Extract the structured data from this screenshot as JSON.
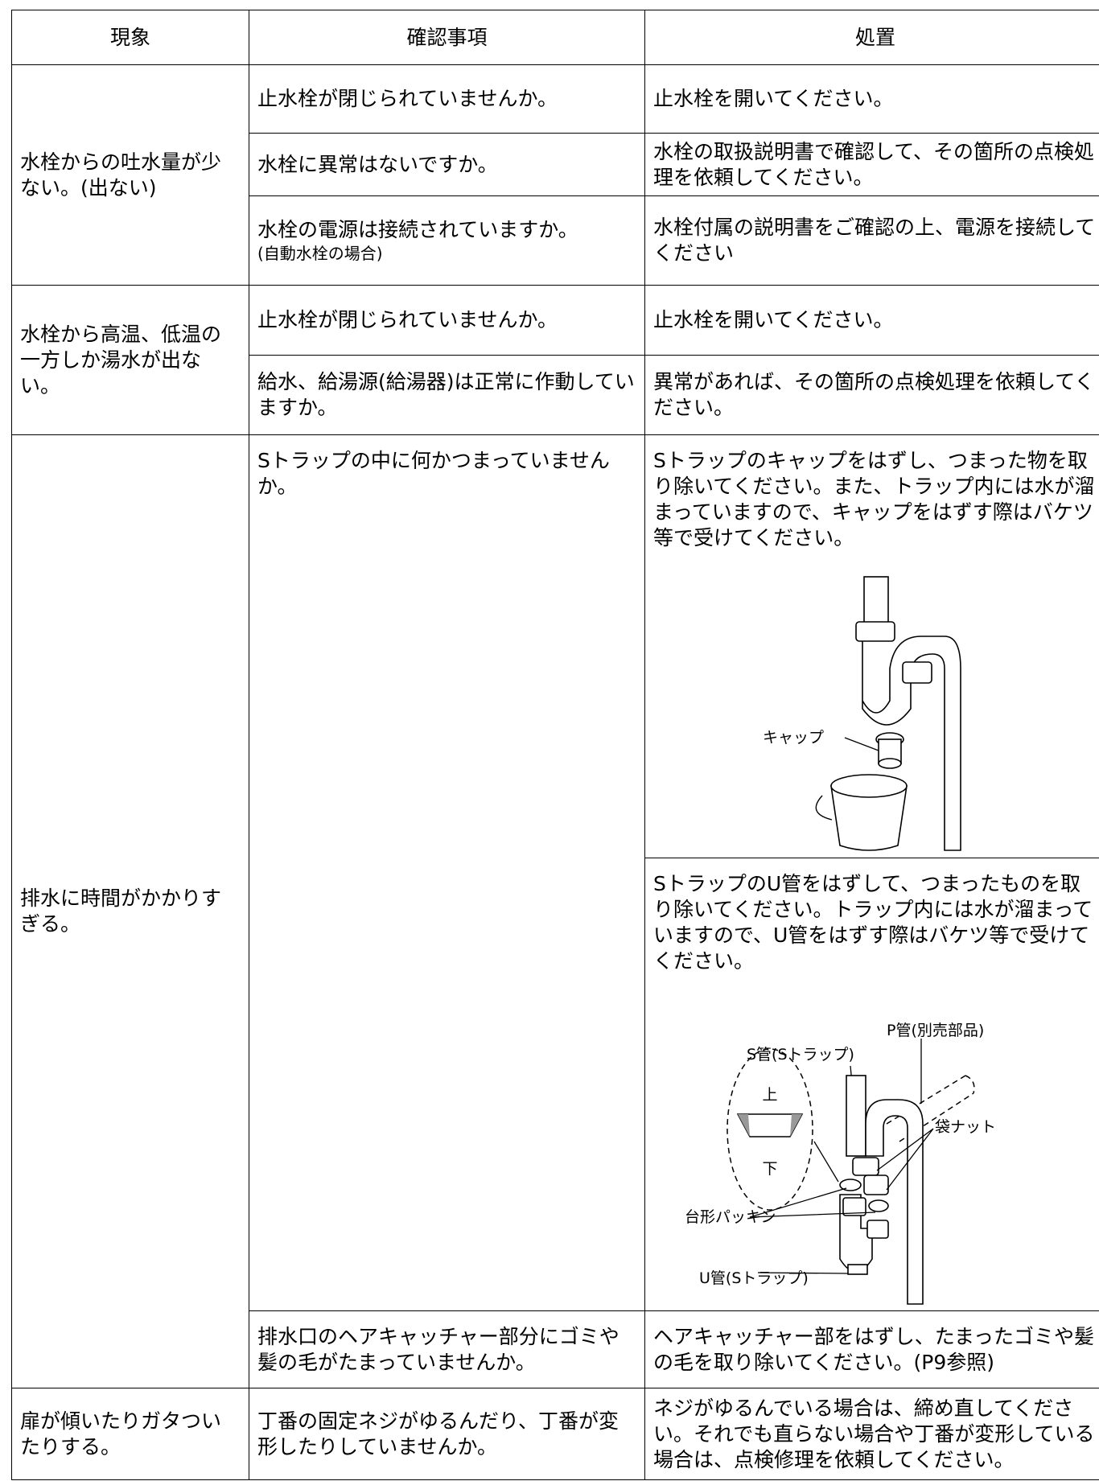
{
  "table": {
    "header": [
      "現象",
      "確認事項",
      "処置"
    ],
    "groups": [
      {
        "symptom": "水栓からの吐水量が少ない。(出ない)",
        "checks": [
          {
            "check": "止水栓が閉じられていませんか。",
            "action": "止水栓を開いてください。"
          },
          {
            "check": "水栓に異常はないですか。",
            "action": "水栓の取扱説明書で確認して、その箇所の点検処理を依頼してください。"
          },
          {
            "check": "水栓の電源は接続されていますか。",
            "note": "(自動水栓の場合)",
            "action": "水栓付属の説明書をご確認の上、電源を接続してください"
          }
        ]
      },
      {
        "symptom": "水栓から高温、低温の一方しか湯水が出ない。",
        "checks": [
          {
            "check": "止水栓が閉じられていませんか。",
            "action": "止水栓を開いてください。"
          },
          {
            "check": "給水、給湯源(給湯器)は正常に作動していますか。",
            "action": "異常があれば、その箇所の点検処理を依頼してください。"
          }
        ]
      },
      {
        "symptom": "排水に時間がかかりすぎる。",
        "checks": [
          {
            "check": "Sトラップの中に何かつまっていませんか。",
            "actions": [
              {
                "text": "Sトラップのキャップをはずし、つまった物を取り除いてください。また、トラップ内には水が溜まっていますので、キャップをはずす際はバケツ等で受けてください。",
                "figure": {
                  "cap": "キャップ"
                }
              },
              {
                "text": "SトラップのU管をはずして、つまったものを取り除いてください。トラップ内には水が溜まっていますので、U管をはずす際はバケツ等で受けてください。",
                "figure": {
                  "p_pipe": "P管(別売部品)",
                  "s_pipe": "S管(Sトラップ)",
                  "top": "上",
                  "bottom": "下",
                  "nut": "袋ナット",
                  "packing": "台形パッキン",
                  "u_pipe": "U管(Sトラップ)"
                }
              }
            ]
          },
          {
            "check": "排水口のヘアキャッチャー部分にゴミや髪の毛がたまっていませんか。",
            "action": "ヘアキャッチャー部をはずし、たまったゴミや髪の毛を取り除いてください。(P9参照)"
          }
        ]
      },
      {
        "symptom": "扉が傾いたりガタついたりする。",
        "checks": [
          {
            "check": "丁番の固定ネジがゆるんだり、丁番が変形したりしていませんか。",
            "action": "ネジがゆるんでいる場合は、締め直してください。それでも直らない場合や丁番が変形している場合は、点検修理を依頼してください。"
          }
        ]
      }
    ]
  }
}
